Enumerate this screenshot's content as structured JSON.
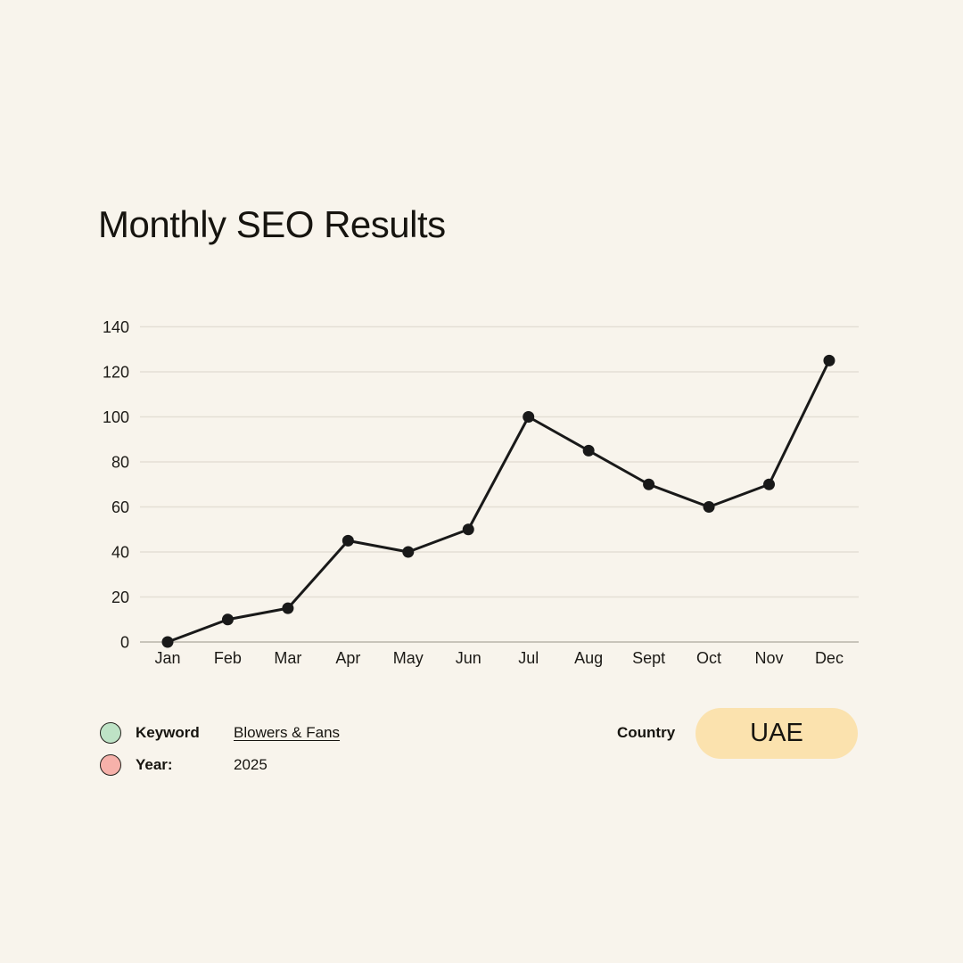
{
  "page": {
    "background": "#F8F4EC",
    "text_color": "#16140F"
  },
  "title": "Monthly SEO Results",
  "chart_data": {
    "type": "line",
    "title": "Monthly SEO Results",
    "categories": [
      "Jan",
      "Feb",
      "Mar",
      "Apr",
      "May",
      "Jun",
      "Jul",
      "Aug",
      "Sept",
      "Oct",
      "Nov",
      "Dec"
    ],
    "series": [
      {
        "name": "Monthly SEO results",
        "values": [
          0,
          10,
          15,
          45,
          40,
          50,
          100,
          85,
          70,
          60,
          70,
          125
        ]
      }
    ],
    "yticks": [
      0,
      20,
      40,
      60,
      80,
      100,
      120,
      140
    ],
    "ylim": [
      0,
      140
    ],
    "grid": true,
    "legend_position": "none",
    "xlabel": "",
    "ylabel": "",
    "line_color": "#191919",
    "marker_color": "#191919",
    "gridline_color": "#E4DFD5",
    "axis_line_color": "#C2BDB3"
  },
  "legend": {
    "keyword": {
      "label": "Keyword",
      "value": "Blowers & Fans",
      "marker_color": "#BEE3C6"
    },
    "year": {
      "label": "Year:",
      "value": "2025",
      "marker_color": "#F6B1AA"
    }
  },
  "country": {
    "label": "Country",
    "value": "UAE",
    "pill_color": "#FBE2AE"
  }
}
